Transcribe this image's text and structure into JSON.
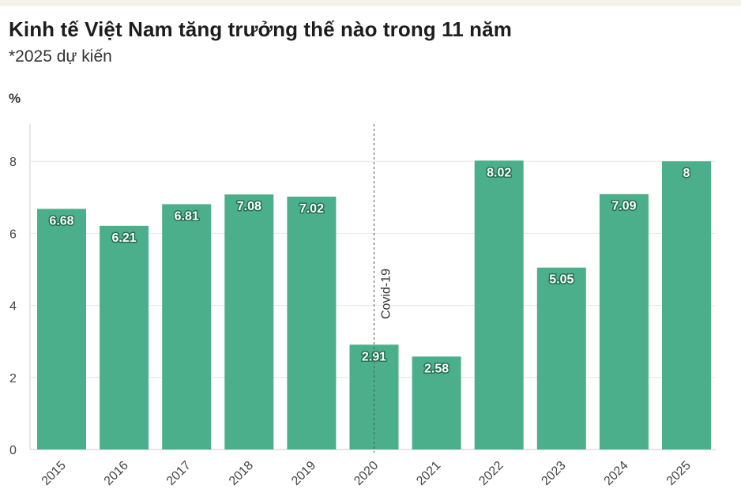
{
  "header": {
    "title": "Kinh tế Việt Nam tăng trưởng thế nào trong 11 năm",
    "subtitle": "*2025 dự kiến"
  },
  "colors": {
    "bar": "#4caf8c",
    "grid": "#e6e6e6",
    "axis": "#cccccc",
    "annotation_line": "#555555"
  },
  "chart_data": {
    "type": "bar",
    "categories": [
      "2015",
      "2016",
      "2017",
      "2018",
      "2019",
      "2020",
      "2021",
      "2022",
      "2023",
      "2024",
      "2025"
    ],
    "values": [
      6.68,
      6.21,
      6.81,
      7.08,
      7.02,
      2.91,
      2.58,
      8.02,
      5.05,
      7.09,
      8
    ],
    "data_labels": [
      "6.68",
      "6.21",
      "6.81",
      "7.08",
      "7.02",
      "2.91",
      "2.58",
      "8.02",
      "5.05",
      "7.09",
      "8"
    ],
    "title": "Kinh tế Việt Nam tăng trưởng thế nào trong 11 năm",
    "subtitle": "*2025 dự kiến",
    "ylabel": "%",
    "xlabel": "",
    "ylim": [
      0,
      9
    ],
    "yticks": [
      0,
      2,
      4,
      6,
      8
    ],
    "ytick_labels": [
      "0",
      "2",
      "4",
      "6",
      "8"
    ],
    "grid": true,
    "annotations": [
      {
        "x": "2020",
        "label": "Covid-19",
        "style": "dashed vertical line"
      }
    ]
  }
}
